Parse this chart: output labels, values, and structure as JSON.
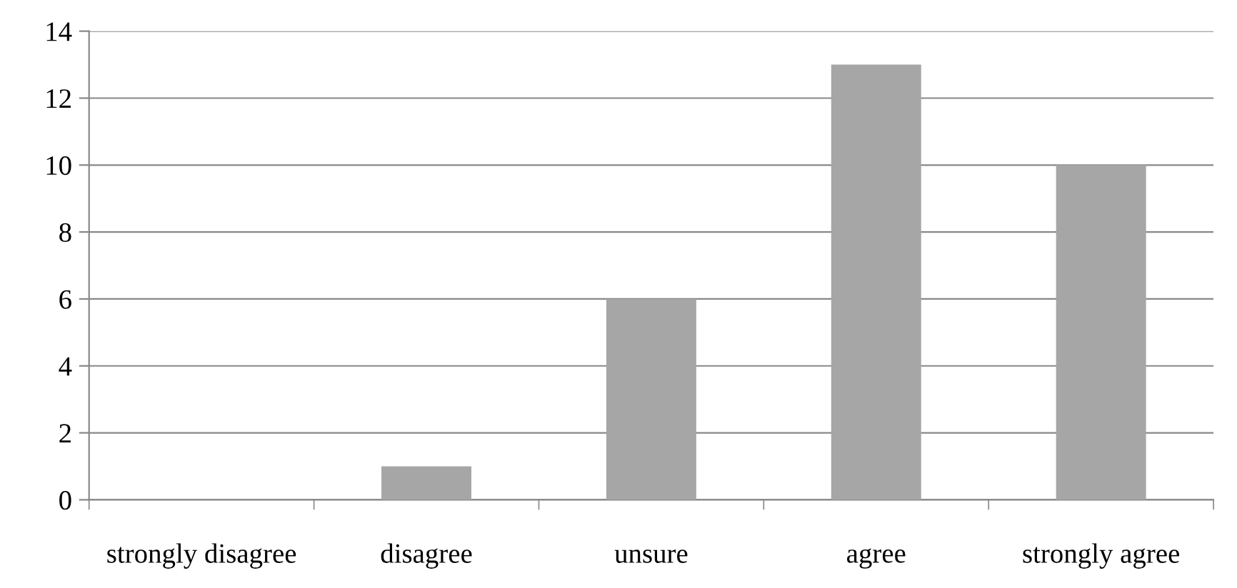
{
  "chart_data": {
    "type": "bar",
    "categories": [
      "strongly disagree",
      "disagree",
      "unsure",
      "agree",
      "strongly agree"
    ],
    "values": [
      0,
      1,
      6,
      13,
      10
    ],
    "color": "#a6a6a6",
    "ylim": [
      0,
      14
    ],
    "yticks": [
      0,
      2,
      4,
      6,
      8,
      10,
      12,
      14
    ],
    "grid": "y"
  }
}
